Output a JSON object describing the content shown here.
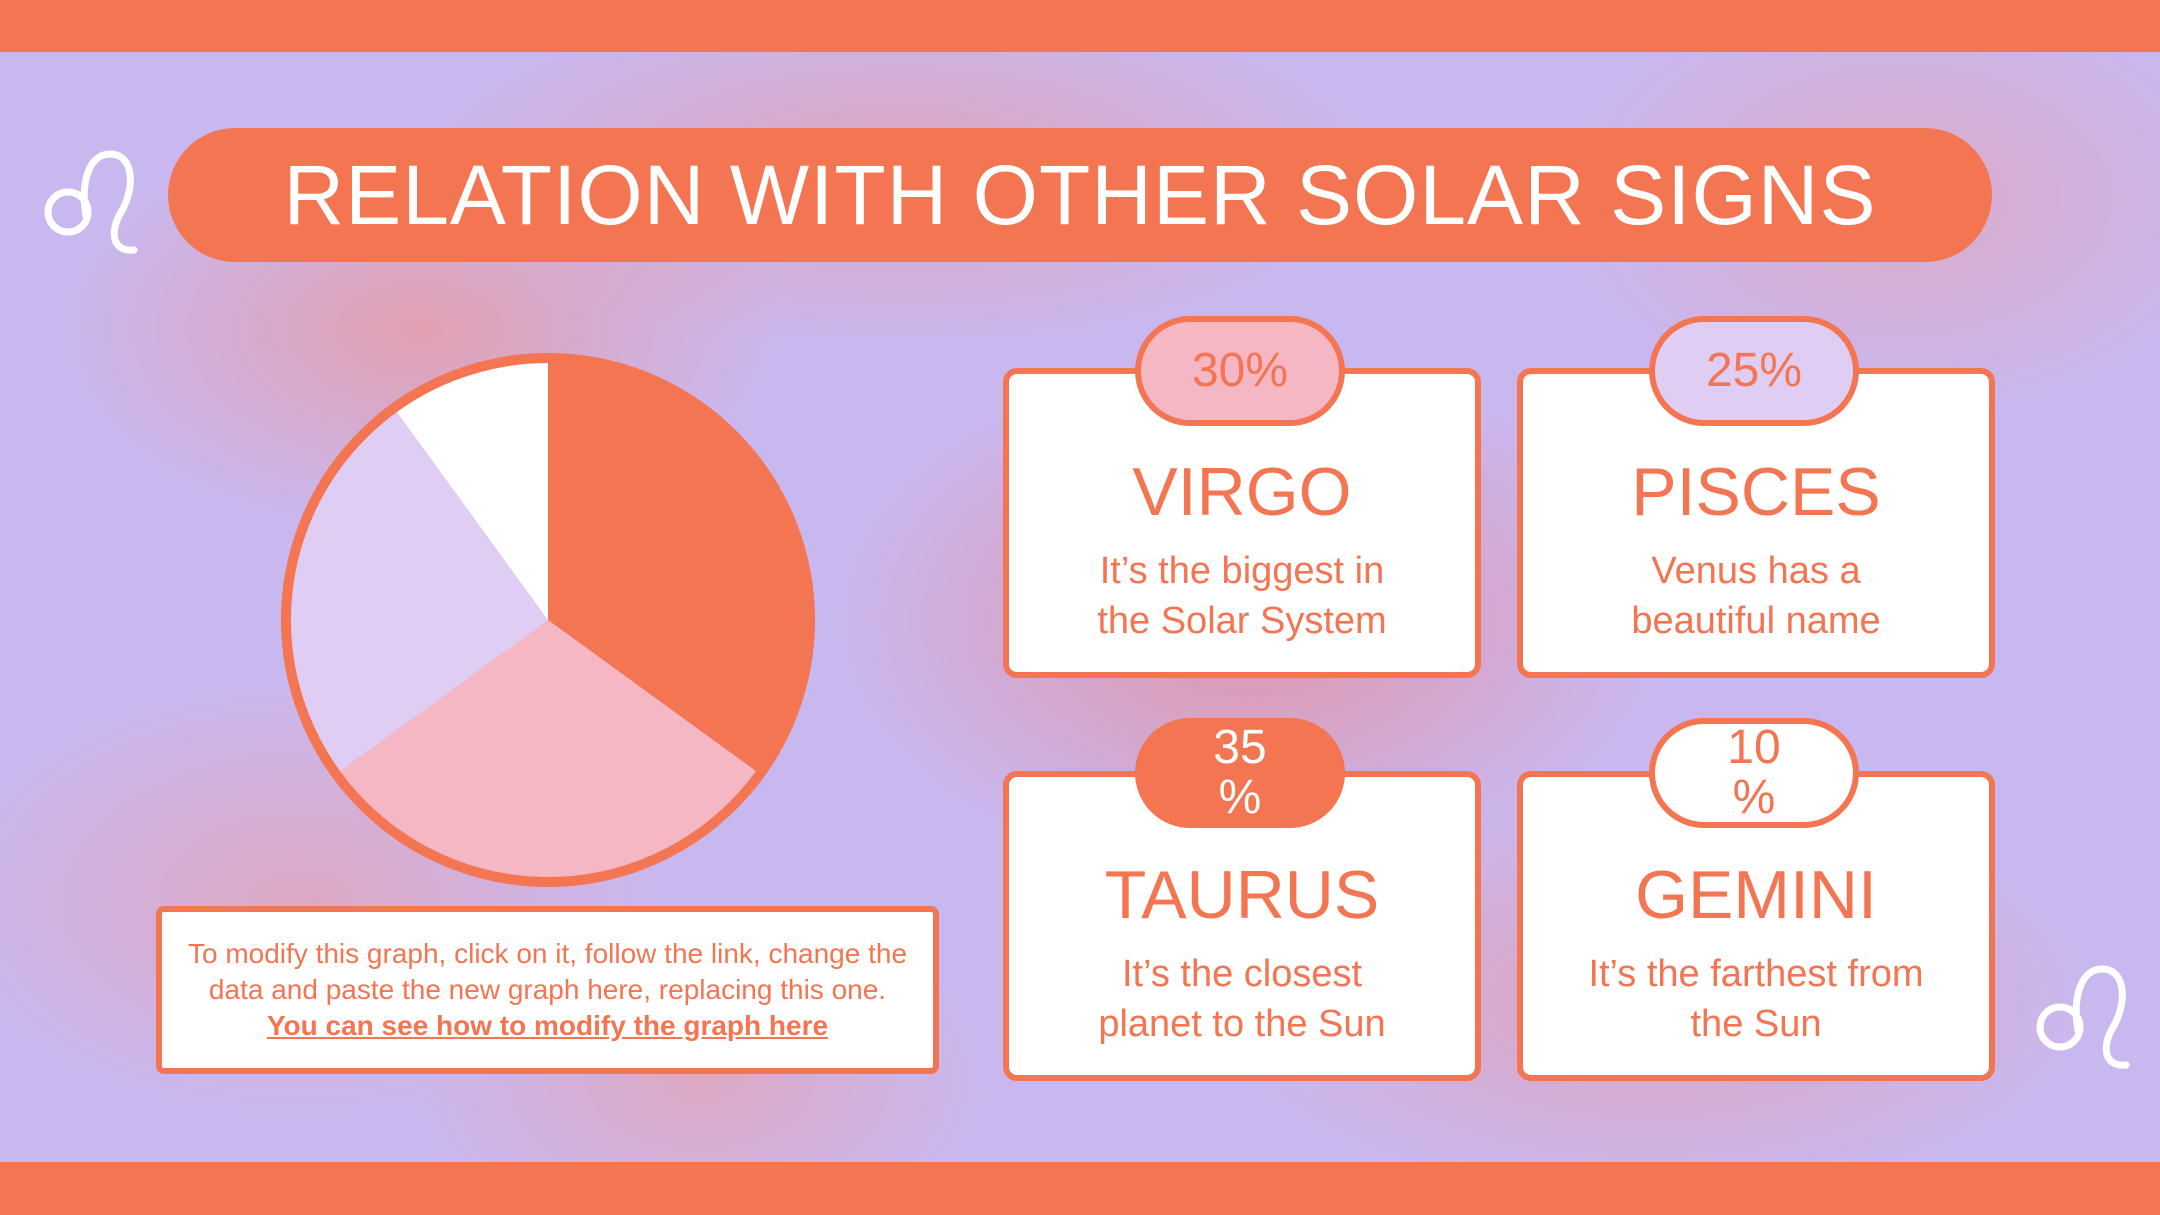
{
  "slide": {
    "title": "RELATION WITH OTHER SOLAR SIGNS",
    "colors": {
      "accent": "#f47551",
      "background": "#c9b8f0",
      "pink": "#f5b7c4",
      "lavender": "#e0cdf4",
      "white": "#ffffff"
    },
    "icons": [
      "leo-symbol-icon",
      "leo-symbol-icon"
    ]
  },
  "chart_data": {
    "type": "pie",
    "values": [
      35,
      30,
      25,
      10
    ],
    "colors": [
      "#f47551",
      "#f5b7c4",
      "#e0cdf4",
      "#ffffff"
    ],
    "start": "top",
    "direction": "clockwise"
  },
  "note": {
    "text": "To modify this graph, click on it, follow the link, change the data and paste the new graph here, replacing this one.",
    "link": "You can see how to modify the graph here"
  },
  "cards": [
    {
      "percent": "30%",
      "name": "VIRGO",
      "desc_line1": "It’s the biggest in",
      "desc_line2": "the Solar System"
    },
    {
      "percent": "25%",
      "name": "PISCES",
      "desc_line1": "Venus has a",
      "desc_line2": "beautiful name"
    },
    {
      "percent": "35 %",
      "name": "TAURUS",
      "desc_line1": "It’s the closest",
      "desc_line2": "planet to the Sun"
    },
    {
      "percent": "10 %",
      "name": "GEMINI",
      "desc_line1": "It’s the farthest from",
      "desc_line2": "the Sun"
    }
  ]
}
